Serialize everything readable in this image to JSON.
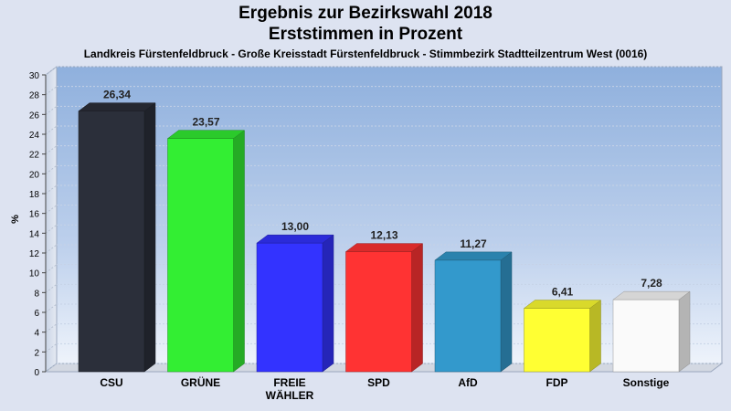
{
  "header": {
    "title_line1": "Ergebnis zur Bezirkswahl 2018",
    "title_line2": "Erststimmen in Prozent",
    "subtitle": "Landkreis Fürstenfeldbruck - Große Kreisstadt Fürstenfeldbruck - Stimmbezirk Stadtteilzentrum West (0016)"
  },
  "chart_data": {
    "type": "bar",
    "title": "Ergebnis zur Bezirkswahl 2018 Erststimmen in Prozent",
    "subtitle": "Landkreis Fürstenfeldbruck - Große Kreisstadt Fürstenfeldbruck - Stimmbezirk Stadtteilzentrum West (0016)",
    "ylabel": "%",
    "xlabel": "",
    "ylim": [
      0,
      30
    ],
    "yticks": [
      0,
      2,
      4,
      6,
      8,
      10,
      12,
      14,
      16,
      18,
      20,
      22,
      24,
      26,
      28,
      30
    ],
    "grid": true,
    "categories": [
      "CSU",
      "GRÜNE",
      "FREIE WÄHLER",
      "SPD",
      "AfD",
      "FDP",
      "Sonstige"
    ],
    "category_lines": [
      [
        "CSU"
      ],
      [
        "GRÜNE"
      ],
      [
        "FREIE",
        "WÄHLER"
      ],
      [
        "SPD"
      ],
      [
        "AfD"
      ],
      [
        "FDP"
      ],
      [
        "Sonstige"
      ]
    ],
    "values": [
      26.34,
      23.57,
      13.0,
      12.13,
      11.27,
      6.41,
      7.28
    ],
    "value_labels": [
      "26,34",
      "23,57",
      "13,00",
      "12,13",
      "11,27",
      "6,41",
      "7,28"
    ],
    "colors": [
      "#2b2f3a",
      "#33ee33",
      "#3333ff",
      "#ff3333",
      "#3399cc",
      "#ffff33",
      "#fafafa"
    ]
  }
}
